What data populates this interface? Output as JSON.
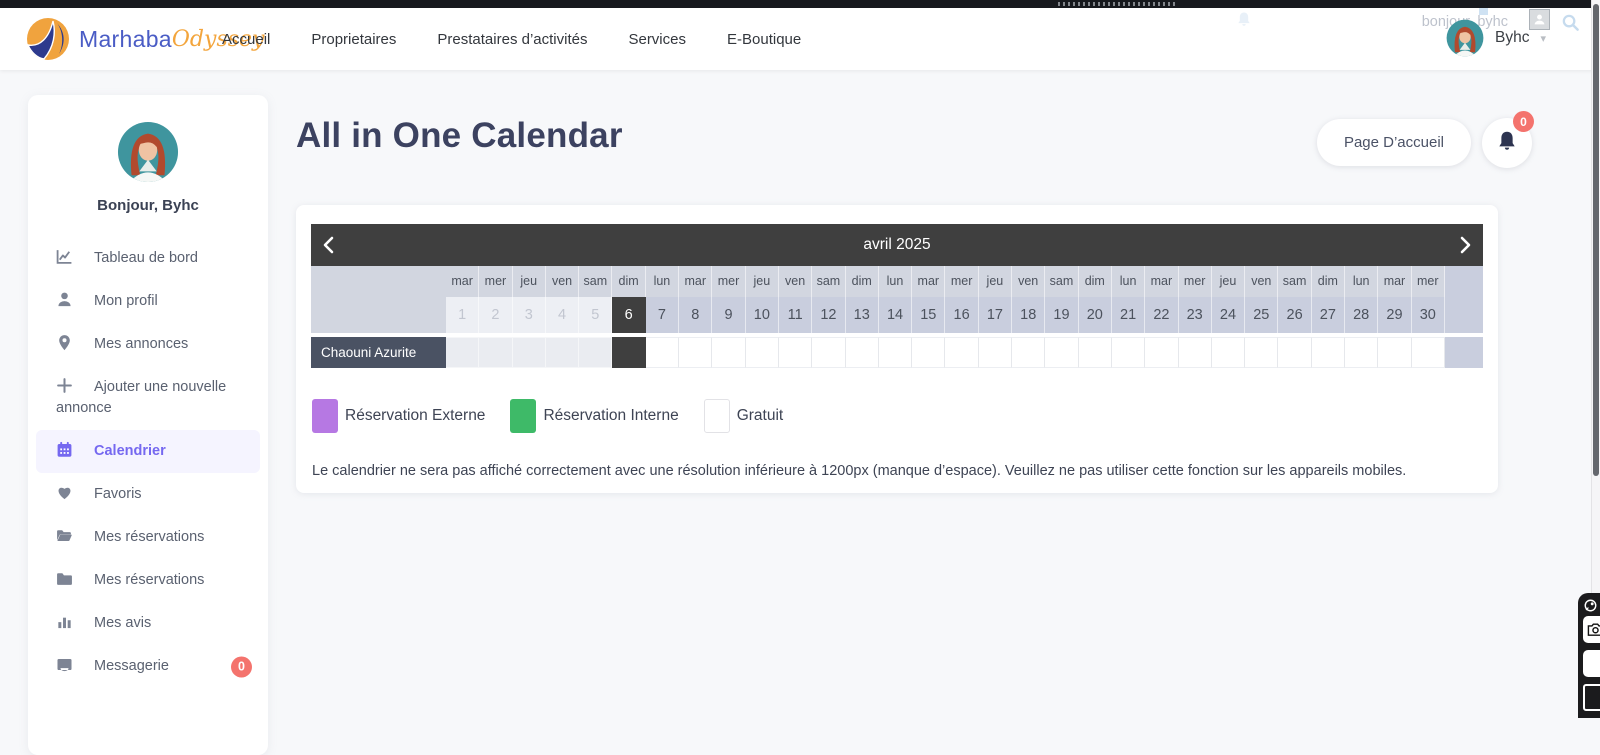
{
  "navbar": {
    "brand_primary": "Marhaba",
    "brand_secondary": "Odyssey",
    "links": [
      {
        "label": "Accueil"
      },
      {
        "label": "Proprietaires"
      },
      {
        "label": "Prestataires d’activités"
      },
      {
        "label": "Services"
      },
      {
        "label": "E-Boutique"
      }
    ],
    "user_name": "Byhc",
    "ghost_greeting": "bonjour, byhc",
    "caret": "▾"
  },
  "sidebar": {
    "greeting": "Bonjour, Byhc",
    "items": [
      {
        "label": "Tableau de bord",
        "icon": "line-chart-icon",
        "active": false
      },
      {
        "label": "Mon profil",
        "icon": "user-icon",
        "active": false
      },
      {
        "label": "Mes annonces",
        "icon": "map-pin-icon",
        "active": false
      },
      {
        "label": "Ajouter une nouvelle annonce",
        "icon": "plus-icon",
        "active": false
      },
      {
        "label": "Calendrier",
        "icon": "calendar-icon",
        "active": true
      },
      {
        "label": "Favoris",
        "icon": "heart-icon",
        "active": false
      },
      {
        "label": "Mes réservations",
        "icon": "folder-open-icon",
        "active": false
      },
      {
        "label": "Mes réservations",
        "icon": "folder-icon",
        "active": false
      },
      {
        "label": "Mes avis",
        "icon": "bar-chart-icon",
        "active": false
      },
      {
        "label": "Messagerie",
        "icon": "inbox-icon",
        "active": false,
        "badge": "0"
      }
    ]
  },
  "main": {
    "page_title": "All in One Calendar",
    "home_button_label": "Page D’accueil",
    "bell_badge": "0"
  },
  "calendar": {
    "month_label": "avril 2025",
    "prev_icon": "chevron-left-icon",
    "next_icon": "chevron-right-icon",
    "today": 6,
    "past_days": [
      1,
      2,
      3,
      4,
      5
    ],
    "columns": [
      {
        "day": 1,
        "weekday": "mar"
      },
      {
        "day": 2,
        "weekday": "mer"
      },
      {
        "day": 3,
        "weekday": "jeu"
      },
      {
        "day": 4,
        "weekday": "ven"
      },
      {
        "day": 5,
        "weekday": "sam"
      },
      {
        "day": 6,
        "weekday": "dim"
      },
      {
        "day": 7,
        "weekday": "lun"
      },
      {
        "day": 8,
        "weekday": "mar"
      },
      {
        "day": 9,
        "weekday": "mer"
      },
      {
        "day": 10,
        "weekday": "jeu"
      },
      {
        "day": 11,
        "weekday": "ven"
      },
      {
        "day": 12,
        "weekday": "sam"
      },
      {
        "day": 13,
        "weekday": "dim"
      },
      {
        "day": 14,
        "weekday": "lun"
      },
      {
        "day": 15,
        "weekday": "mar"
      },
      {
        "day": 16,
        "weekday": "mer"
      },
      {
        "day": 17,
        "weekday": "jeu"
      },
      {
        "day": 18,
        "weekday": "ven"
      },
      {
        "day": 19,
        "weekday": "sam"
      },
      {
        "day": 20,
        "weekday": "dim"
      },
      {
        "day": 21,
        "weekday": "lun"
      },
      {
        "day": 22,
        "weekday": "mar"
      },
      {
        "day": 23,
        "weekday": "mer"
      },
      {
        "day": 24,
        "weekday": "jeu"
      },
      {
        "day": 25,
        "weekday": "ven"
      },
      {
        "day": 26,
        "weekday": "sam"
      },
      {
        "day": 27,
        "weekday": "dim"
      },
      {
        "day": 28,
        "weekday": "lun"
      },
      {
        "day": 29,
        "weekday": "mar"
      },
      {
        "day": 30,
        "weekday": "mer"
      }
    ],
    "properties": [
      {
        "name": "Chaouni Azurite"
      }
    ],
    "legend": [
      {
        "label": "Réservation Externe",
        "color": "#b678e3",
        "bordered": false
      },
      {
        "label": "Réservation Interne",
        "color": "#3eba68",
        "bordered": false
      },
      {
        "label": "Gratuit",
        "color": "#ffffff",
        "bordered": true
      }
    ],
    "note": "Le calendrier ne sera pas affiché correctement avec une résolution inférieure à 1200px (manque d’espace). Veuillez ne pas utiliser cette fonction sur les appareils mobiles."
  },
  "colors": {
    "accent_purple": "#7568f0",
    "badge_red": "#f4736d",
    "calendar_header_dark": "#3f3f3f",
    "property_label_bg": "#4a5263",
    "brand_blue": "#4a5cc5",
    "brand_orange": "#f3a53c",
    "avatar_teal": "#3f959e"
  }
}
